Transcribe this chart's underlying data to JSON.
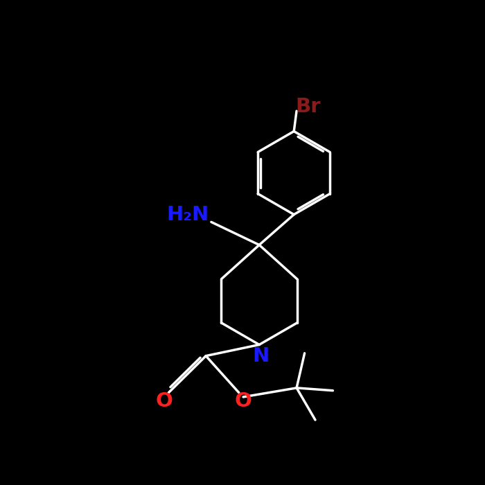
{
  "bg_color": "#000000",
  "bond_color_white": "#ffffff",
  "br_color": "#8b1a1a",
  "n_color": "#1a1aff",
  "o_color": "#ff2020",
  "nh2_color": "#1a1aff",
  "bond_lw": 2.5,
  "font_size_atom": 20,
  "fig_bg": "#000000",
  "xlim": [
    0,
    700
  ],
  "ylim": [
    0,
    700
  ]
}
